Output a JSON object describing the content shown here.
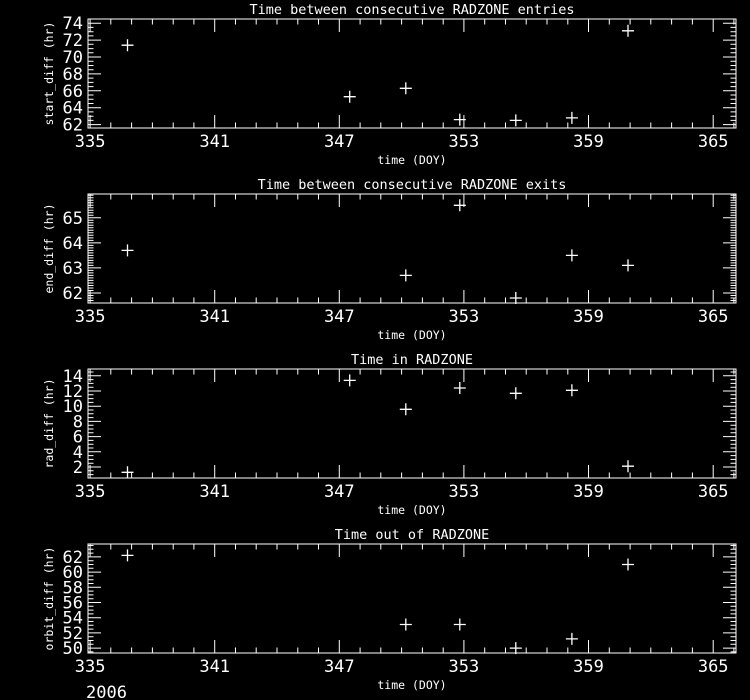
{
  "figure": {
    "year_label": "2006",
    "background": "#000000",
    "foreground": "#ffffff",
    "marker_glyph": "+"
  },
  "chart_data": [
    {
      "type": "scatter",
      "name": "start-diff",
      "title": "Time between consecutive RADZONE entries",
      "xlabel": "time (DOY)",
      "ylabel": "start_diff (hr)",
      "xlim": [
        334.9,
        366.1
      ],
      "ylim": [
        61.6,
        74.5
      ],
      "xticks": [
        335,
        341,
        347,
        353,
        359,
        365
      ],
      "x_minor_step": 1,
      "yticks": [
        62,
        64,
        66,
        68,
        70,
        72,
        74
      ],
      "y_minor_step": 0.5,
      "x": [
        336.8,
        347.5,
        350.2,
        352.8,
        355.5,
        358.2,
        360.9
      ],
      "y": [
        71.4,
        65.3,
        66.3,
        62.6,
        62.5,
        62.8,
        73.1
      ],
      "grid": false,
      "legend": null
    },
    {
      "type": "scatter",
      "name": "end-diff",
      "title": "Time between consecutive RADZONE exits",
      "xlabel": "time (DOY)",
      "ylabel": "end_diff (hr)",
      "xlim": [
        334.9,
        366.1
      ],
      "ylim": [
        61.6,
        65.95
      ],
      "xticks": [
        335,
        341,
        347,
        353,
        359,
        365
      ],
      "x_minor_step": 1,
      "yticks": [
        62,
        63,
        64,
        65
      ],
      "y_minor_step": 0.1,
      "x": [
        336.8,
        350.2,
        352.8,
        355.5,
        358.2,
        360.9
      ],
      "y": [
        63.7,
        62.7,
        65.5,
        61.8,
        63.5,
        63.1
      ],
      "grid": false,
      "legend": null
    },
    {
      "type": "scatter",
      "name": "rad-diff",
      "title": "Time in RADZONE",
      "xlabel": "time (DOY)",
      "ylabel": "rad_diff (hr)",
      "xlim": [
        334.9,
        366.1
      ],
      "ylim": [
        0.55,
        14.9
      ],
      "xticks": [
        335,
        341,
        347,
        353,
        359,
        365
      ],
      "x_minor_step": 1,
      "yticks": [
        2,
        4,
        6,
        8,
        10,
        12,
        14
      ],
      "y_minor_step": 0.5,
      "x": [
        336.8,
        347.5,
        350.2,
        352.8,
        355.5,
        358.2,
        360.9
      ],
      "y": [
        1.3,
        13.4,
        9.6,
        12.4,
        11.7,
        12.1,
        2.1
      ],
      "grid": false,
      "legend": null
    },
    {
      "type": "scatter",
      "name": "orbit-diff",
      "title": "Time out of RADZONE",
      "xlabel": "time (DOY)",
      "ylabel": "orbit_diff (hr)",
      "xlim": [
        334.9,
        366.1
      ],
      "ylim": [
        49.35,
        63.7
      ],
      "xticks": [
        335,
        341,
        347,
        353,
        359,
        365
      ],
      "x_minor_step": 1,
      "yticks": [
        50,
        52,
        54,
        56,
        58,
        60,
        62
      ],
      "y_minor_step": 0.5,
      "x": [
        336.8,
        350.2,
        352.8,
        355.5,
        358.2,
        360.9
      ],
      "y": [
        62.2,
        53.1,
        53.1,
        50.0,
        51.2,
        61.0
      ],
      "grid": false,
      "legend": null
    }
  ]
}
